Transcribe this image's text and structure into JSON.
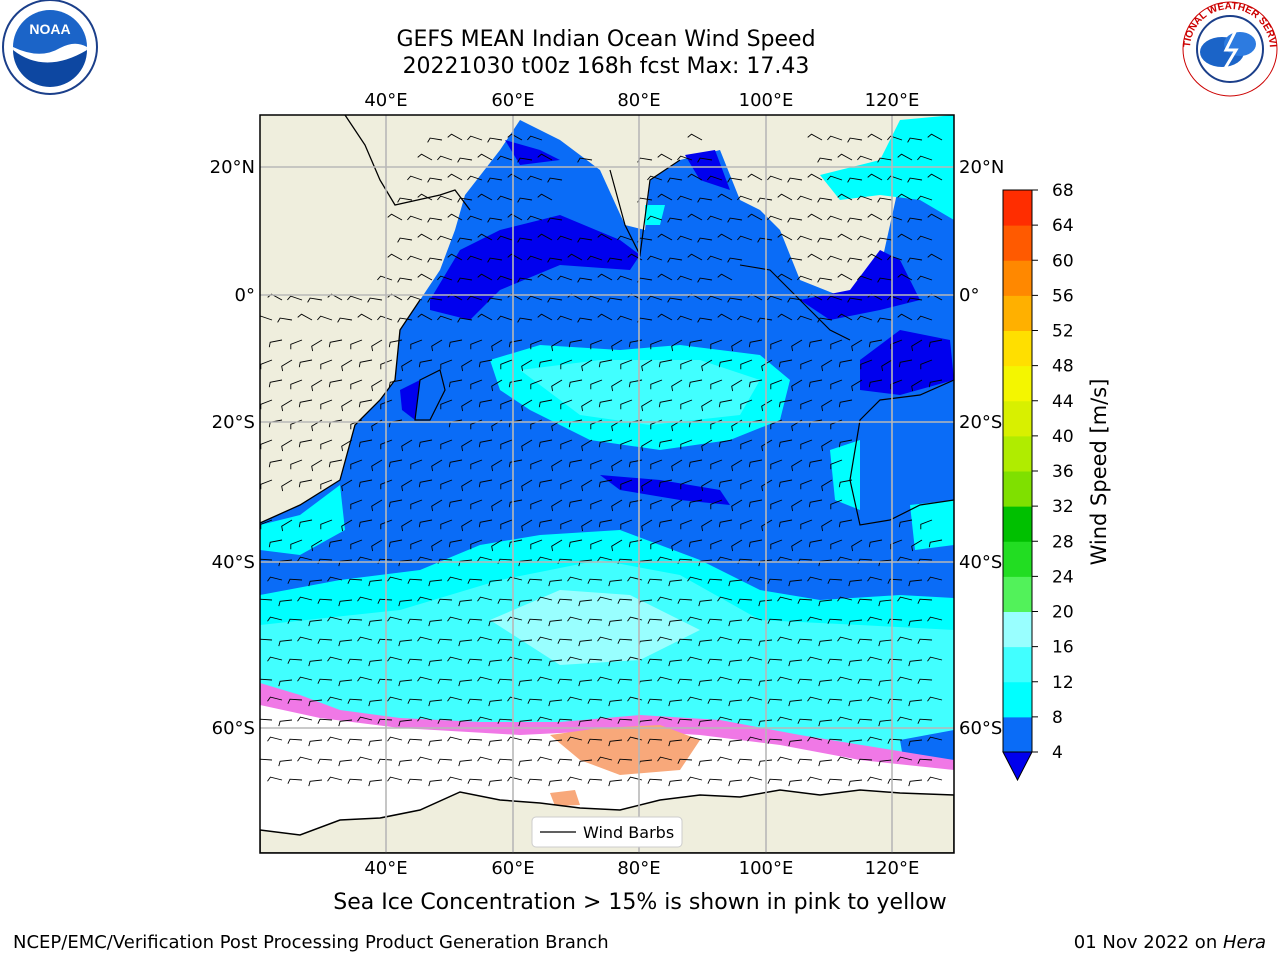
{
  "header": {
    "title_line1": "GEFS MEAN Indian Ocean Wind Speed",
    "title_line2": "20221030 t00z 168h fcst   Max: 17.43"
  },
  "logos": {
    "left_text": "NOAA",
    "right_text": "NATIONAL WEATHER SERVICE"
  },
  "map": {
    "lon_ticks": [
      "40°E",
      "60°E",
      "80°E",
      "100°E",
      "120°E"
    ],
    "lat_ticks_left": [
      "20°N",
      "0°",
      "20°S",
      "40°S",
      "60°S"
    ],
    "lat_ticks_right": [
      "20°N",
      "0°",
      "20°S",
      "40°S",
      "60°S"
    ],
    "legend_label": "Wind Barbs",
    "colors": {
      "land": "#efeedd",
      "band_4_8": "#0a6cf7",
      "band_0_4": "#0000ee",
      "band_8_12": "#00ffff",
      "band_12_16": "#41ffff",
      "band_16_20": "#99ffff",
      "sea_ice_pink": "#f078e6",
      "sea_ice_orange": "#f8a87a"
    }
  },
  "colorbar": {
    "label": "Wind Speed [m/s]",
    "ticks": [
      "4",
      "8",
      "12",
      "16",
      "20",
      "24",
      "28",
      "32",
      "36",
      "40",
      "44",
      "48",
      "52",
      "56",
      "60",
      "64",
      "68"
    ],
    "colors": [
      "#0a6cf7",
      "#00ffff",
      "#41ffff",
      "#99ffff",
      "#52f25a",
      "#22dd22",
      "#00c000",
      "#7fe000",
      "#b0ec00",
      "#d8f000",
      "#f4f600",
      "#ffdf00",
      "#ffb000",
      "#ff8800",
      "#ff5a00",
      "#ff2d00"
    ],
    "extend_color": "#0000ee"
  },
  "caption": "Sea Ice Concentration > 15% is shown in pink to yellow",
  "footer": {
    "left": "NCEP/EMC/Verification Post Processing Product Generation Branch",
    "right_date": "01 Nov 2022 on ",
    "right_host": "Hera"
  }
}
